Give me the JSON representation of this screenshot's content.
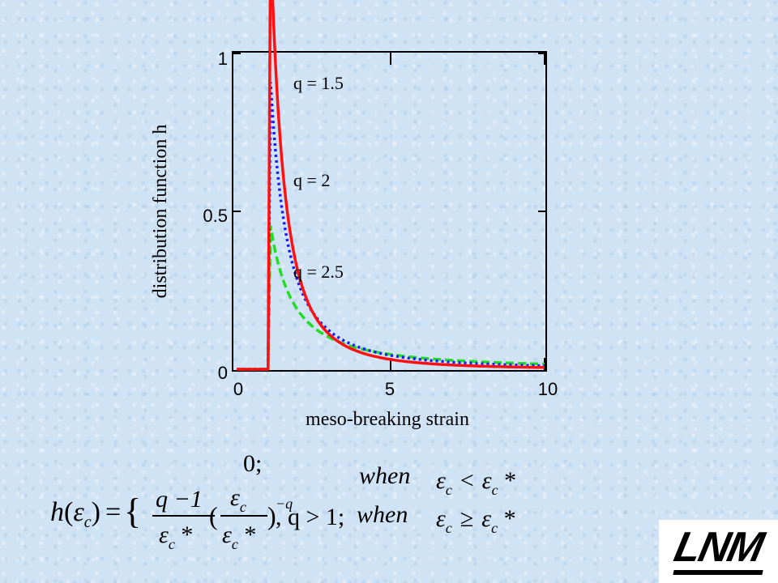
{
  "chart_data": {
    "type": "line",
    "title": "",
    "xlabel": "meso-breaking strain",
    "ylabel": "distribution function h",
    "xlim": [
      0,
      10
    ],
    "ylim": [
      0,
      1
    ],
    "xticks": [
      "0",
      "5",
      "10"
    ],
    "yticks": [
      "0",
      "0.5",
      "1"
    ],
    "grid": false,
    "epsilon_star": 1.1,
    "series": [
      {
        "name": "q = 1.5",
        "q": 1.5,
        "color": "#22dd22",
        "style": "dashed"
      },
      {
        "name": "q = 2",
        "q": 2,
        "color": "#1a1aff",
        "style": "dotted"
      },
      {
        "name": "q = 2.5",
        "q": 2.5,
        "color": "#ff1111",
        "style": "solid"
      }
    ]
  },
  "formula": {
    "lhs_h": "h",
    "lhs_open": "(",
    "lhs_eps": "ε",
    "lhs_sub": "c",
    "lhs_close": ")",
    "equals": "=",
    "brace": "{",
    "case1_value": "0;",
    "case2_num": "q −1",
    "case2_den_eps": "ε",
    "case2_den_sub": "c",
    "case2_den_star": " *",
    "case2_paren_open": "(",
    "case2_inner_num_eps": "ε",
    "case2_inner_num_sub": "c",
    "case2_inner_den_eps": "ε",
    "case2_inner_den_sub": "c",
    "case2_inner_den_star": " *",
    "case2_paren_close": ")",
    "case2_exp": "−q",
    "case2_tail": ", q > 1;",
    "when1": "when",
    "cond1_eps": "ε",
    "cond1_sub": "c",
    "cond1_op": "<",
    "cond1_eps2": "ε",
    "cond1_sub2": "c",
    "cond1_star": " *",
    "when2": "when",
    "cond2_eps": "ε",
    "cond2_sub": "c",
    "cond2_op": "≥",
    "cond2_eps2": "ε",
    "cond2_sub2": "c",
    "cond2_star": " *"
  },
  "logo": {
    "text": "LNM"
  }
}
